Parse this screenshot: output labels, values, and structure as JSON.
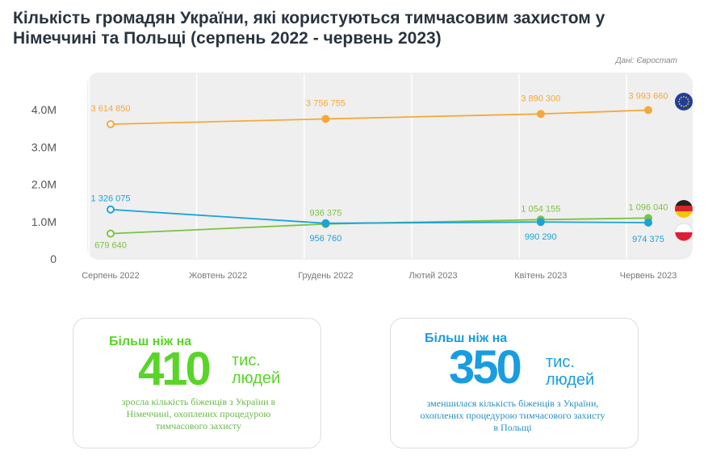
{
  "title": "Кількість громадян України, які користуються тимчасовим захистом у Німеччині та Польщі (серпень 2022 - червень 2023)",
  "source": "Дані: Євростат",
  "chart_data": {
    "type": "line",
    "x": [
      "Серпень 2022",
      "Грудень 2022",
      "Квітень 2023",
      "Червень 2023"
    ],
    "x_months": [
      0,
      4,
      8,
      10
    ],
    "xtick_labels": [
      "Серпень 2022",
      "Жовтень 2022",
      "Грудень 2022",
      "Лютий 2023",
      "Квітень 2023",
      "Червень 2023"
    ],
    "ytick_labels": [
      "0",
      "1.0M",
      "2.0M",
      "3.0M",
      "4.0M"
    ],
    "ylim": [
      0,
      4300000
    ],
    "grid": "vertical",
    "series": [
      {
        "key": "eu",
        "icon": "eu-flag-icon",
        "color": "#f5a83a",
        "values": [
          3614850,
          3756755,
          3890300,
          3993660
        ],
        "labels": [
          "3 614 850",
          "3 756 755",
          "3 890 300",
          "3 993 660"
        ]
      },
      {
        "key": "de",
        "icon": "germany-flag-icon",
        "color": "#7cc242",
        "values": [
          679640,
          936375,
          1054155,
          1096040
        ],
        "labels": [
          "679 640",
          "936 375",
          "1 054 155",
          "1 096 040"
        ]
      },
      {
        "key": "pl",
        "icon": "poland-flag-icon",
        "color": "#1aa3d9",
        "values": [
          1326075,
          956760,
          990290,
          974375
        ],
        "labels": [
          "1 326 075",
          "956 760",
          "990 290",
          "974 375"
        ]
      }
    ]
  },
  "cards": [
    {
      "lead": "Більш ніж на",
      "number": "410",
      "unit1": "тис.",
      "unit2": "людей",
      "desc": "зросла кількість біженців з України в Німеччині, охоплених процедурою тимчасового захисту",
      "color": "#5ad42a"
    },
    {
      "lead": "Більш ніж на",
      "number": "350",
      "unit1": "тис.",
      "unit2": "людей",
      "desc": "зменшилася кількість біженців з України, охоплених процедурою тимчасового захисту в Польщі",
      "color": "#1a9de0"
    }
  ]
}
